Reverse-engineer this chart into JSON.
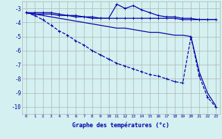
{
  "xlabel": "Graphe des températures (°c)",
  "background_color": "#d4f0f0",
  "grid_color": "#b0b0b0",
  "line_color": "#0000aa",
  "x_values": [
    0,
    1,
    2,
    3,
    4,
    5,
    6,
    7,
    8,
    9,
    10,
    11,
    12,
    13,
    14,
    15,
    16,
    17,
    18,
    19,
    20,
    21,
    22,
    23
  ],
  "series1": [
    -3.3,
    -3.4,
    -3.4,
    -3.4,
    -3.5,
    -3.5,
    -3.6,
    -3.6,
    -3.7,
    -3.7,
    -3.7,
    -3.7,
    -3.7,
    -3.7,
    -3.7,
    -3.7,
    -3.7,
    -3.7,
    -3.7,
    -3.8,
    -3.8,
    -3.8,
    -3.8,
    -3.8
  ],
  "series2": [
    -3.3,
    -3.3,
    -3.3,
    -3.3,
    -3.4,
    -3.5,
    -3.5,
    -3.6,
    -3.6,
    -3.7,
    -3.7,
    -2.7,
    -3.0,
    -2.8,
    -3.1,
    -3.3,
    -3.5,
    -3.6,
    -3.6,
    -3.7,
    -3.7,
    -3.8,
    -3.8,
    -3.8
  ],
  "series3": [
    -3.3,
    -3.4,
    -3.5,
    -3.6,
    -3.7,
    -3.8,
    -3.9,
    -4.0,
    -4.1,
    -4.2,
    -4.3,
    -4.4,
    -4.4,
    -4.5,
    -4.6,
    -4.7,
    -4.7,
    -4.8,
    -4.9,
    -4.9,
    -5.0,
    -7.5,
    -9.0,
    -9.9
  ],
  "series4": [
    -3.3,
    -3.5,
    -3.8,
    -4.2,
    -4.6,
    -4.9,
    -5.3,
    -5.6,
    -6.0,
    -6.3,
    -6.6,
    -6.9,
    -7.1,
    -7.3,
    -7.5,
    -7.7,
    -7.8,
    -8.0,
    -8.2,
    -8.3,
    -5.0,
    -7.8,
    -9.3,
    -10.0
  ],
  "ylim": [
    -10.5,
    -2.5
  ],
  "xlim": [
    -0.5,
    23.5
  ],
  "yticks": [
    -10,
    -9,
    -8,
    -7,
    -6,
    -5,
    -4,
    -3
  ],
  "xticks": [
    0,
    1,
    2,
    3,
    4,
    5,
    6,
    7,
    8,
    9,
    10,
    11,
    12,
    13,
    14,
    15,
    16,
    17,
    18,
    19,
    20,
    21,
    22,
    23
  ]
}
